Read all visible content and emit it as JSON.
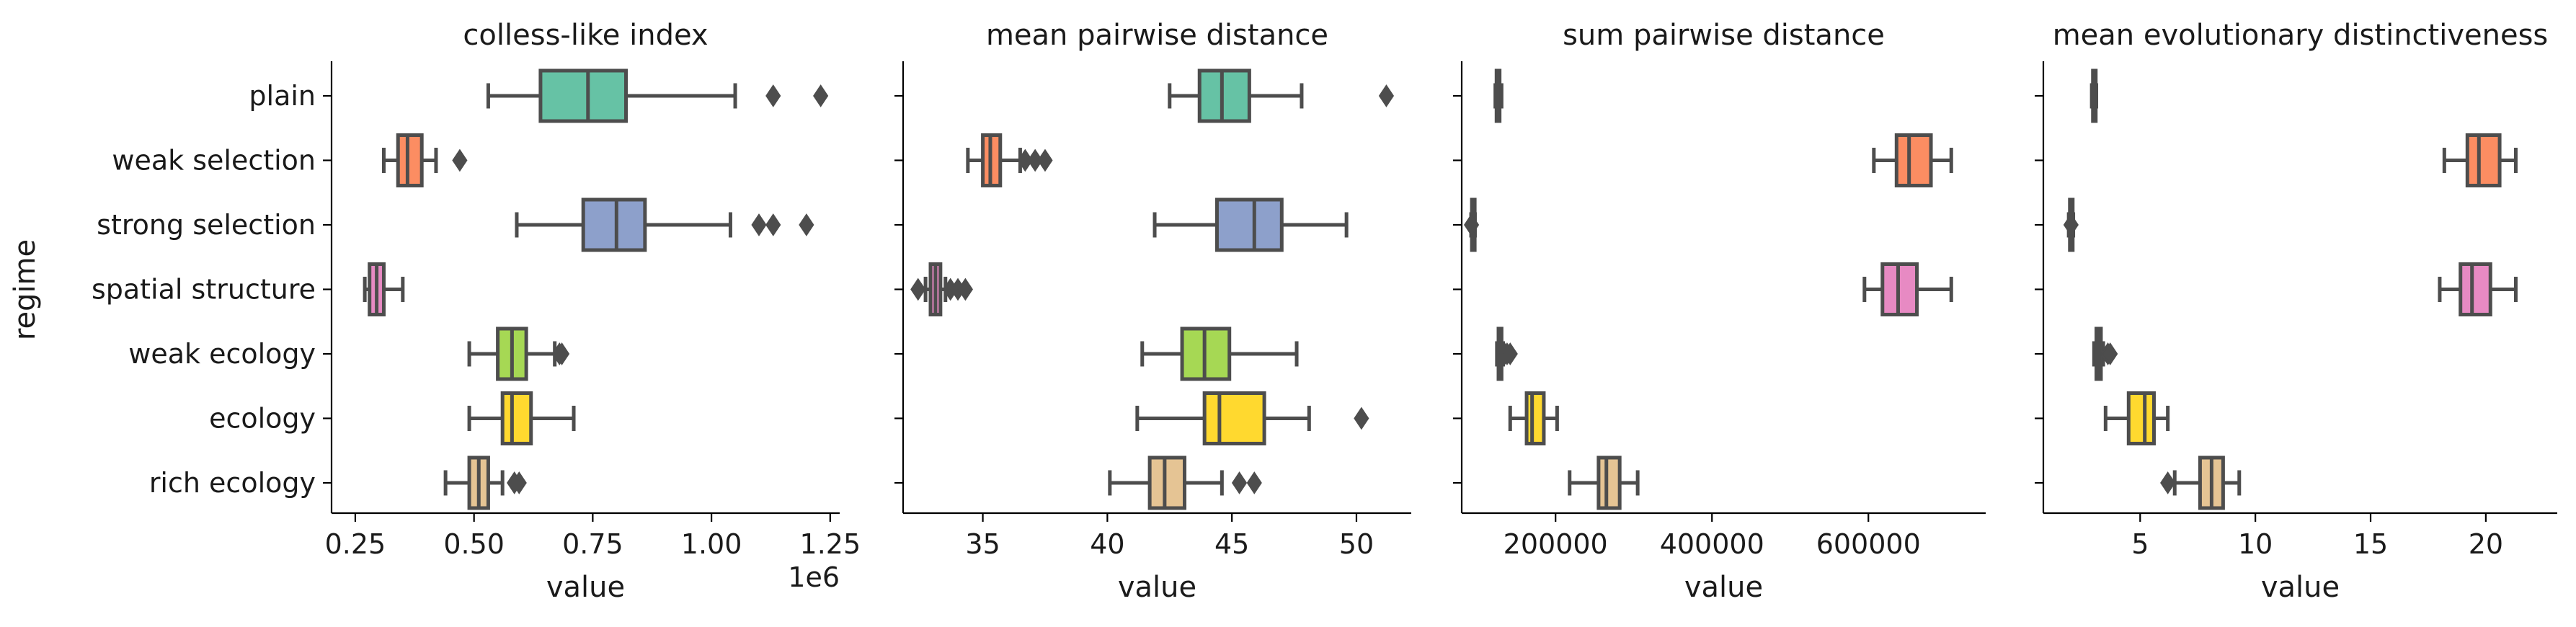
{
  "ylabel": "regime",
  "categories": [
    "plain",
    "weak selection",
    "strong selection",
    "spatial structure",
    "weak ecology",
    "ecology",
    "rich ecology"
  ],
  "colors": [
    "#66c2a5",
    "#fc8d62",
    "#8da0cb",
    "#e78ac3",
    "#a6d854",
    "#ffd92f",
    "#e5c494"
  ],
  "chart_data": [
    {
      "type": "box",
      "title": "colless-like index",
      "xlabel": "value",
      "offset_label": "1e6",
      "xlim": [
        0.2,
        1.27
      ],
      "xticks": [
        0.25,
        0.5,
        0.75,
        1.0,
        1.25
      ],
      "xtick_labels": [
        "0.25",
        "0.50",
        "0.75",
        "1.00",
        "1.25"
      ],
      "boxes": [
        {
          "category": "plain",
          "whislo": 0.53,
          "q1": 0.64,
          "med": 0.74,
          "q3": 0.82,
          "whishi": 1.05,
          "fliers": [
            1.13,
            1.23
          ]
        },
        {
          "category": "weak selection",
          "whislo": 0.31,
          "q1": 0.34,
          "med": 0.36,
          "q3": 0.39,
          "whishi": 0.42,
          "fliers": [
            0.47
          ]
        },
        {
          "category": "strong selection",
          "whislo": 0.59,
          "q1": 0.73,
          "med": 0.8,
          "q3": 0.86,
          "whishi": 1.04,
          "fliers": [
            1.1,
            1.13,
            1.2
          ]
        },
        {
          "category": "spatial structure",
          "whislo": 0.27,
          "q1": 0.28,
          "med": 0.295,
          "q3": 0.31,
          "whishi": 0.35,
          "fliers": []
        },
        {
          "category": "weak ecology",
          "whislo": 0.49,
          "q1": 0.55,
          "med": 0.58,
          "q3": 0.61,
          "whishi": 0.67,
          "fliers": [
            0.68,
            0.685
          ]
        },
        {
          "category": "ecology",
          "whislo": 0.49,
          "q1": 0.56,
          "med": 0.58,
          "q3": 0.62,
          "whishi": 0.71,
          "fliers": []
        },
        {
          "category": "rich ecology",
          "whislo": 0.44,
          "q1": 0.49,
          "med": 0.51,
          "q3": 0.53,
          "whishi": 0.56,
          "fliers": [
            0.585,
            0.595
          ]
        }
      ]
    },
    {
      "type": "box",
      "title": "mean pairwise distance",
      "xlabel": "value",
      "offset_label": "",
      "xlim": [
        31.8,
        52.2
      ],
      "xticks": [
        35,
        40,
        45,
        50
      ],
      "xtick_labels": [
        "35",
        "40",
        "45",
        "50"
      ],
      "boxes": [
        {
          "category": "plain",
          "whislo": 42.5,
          "q1": 43.7,
          "med": 44.6,
          "q3": 45.7,
          "whishi": 47.8,
          "fliers": [
            51.2
          ]
        },
        {
          "category": "weak selection",
          "whislo": 34.4,
          "q1": 35.0,
          "med": 35.3,
          "q3": 35.7,
          "whishi": 36.5,
          "fliers": [
            36.7,
            37.1,
            37.5
          ]
        },
        {
          "category": "strong selection",
          "whislo": 41.9,
          "q1": 44.4,
          "med": 45.9,
          "q3": 47.0,
          "whishi": 49.6,
          "fliers": []
        },
        {
          "category": "spatial structure",
          "whislo": 32.7,
          "q1": 32.9,
          "med": 33.1,
          "q3": 33.3,
          "whishi": 33.5,
          "fliers": [
            32.4,
            33.7,
            34.0,
            34.3
          ]
        },
        {
          "category": "weak ecology",
          "whislo": 41.4,
          "q1": 43.0,
          "med": 43.9,
          "q3": 44.9,
          "whishi": 47.6,
          "fliers": []
        },
        {
          "category": "ecology",
          "whislo": 41.2,
          "q1": 43.9,
          "med": 44.5,
          "q3": 46.3,
          "whishi": 48.1,
          "fliers": [
            50.2
          ]
        },
        {
          "category": "rich ecology",
          "whislo": 40.1,
          "q1": 41.7,
          "med": 42.3,
          "q3": 43.1,
          "whishi": 44.6,
          "fliers": [
            45.3,
            45.9
          ]
        }
      ]
    },
    {
      "type": "box",
      "title": "sum pairwise distance",
      "xlabel": "value",
      "offset_label": "",
      "xlim": [
        80000,
        750000
      ],
      "xticks": [
        200000,
        400000,
        600000
      ],
      "xtick_labels": [
        "200000",
        "400000",
        "600000"
      ],
      "boxes": [
        {
          "category": "plain",
          "whislo": 123000,
          "q1": 124500,
          "med": 126000,
          "q3": 128500,
          "whishi": 131000,
          "fliers": []
        },
        {
          "category": "weak selection",
          "whislo": 607000,
          "q1": 636000,
          "med": 652000,
          "q3": 680000,
          "whishi": 706000,
          "fliers": []
        },
        {
          "category": "strong selection",
          "whislo": 92000,
          "q1": 93000,
          "med": 94500,
          "q3": 95500,
          "whishi": 97000,
          "fliers": [
            92500
          ]
        },
        {
          "category": "spatial structure",
          "whislo": 595000,
          "q1": 618000,
          "med": 638000,
          "q3": 662000,
          "whishi": 706000,
          "fliers": []
        },
        {
          "category": "weak ecology",
          "whislo": 125000,
          "q1": 127000,
          "med": 129000,
          "q3": 131000,
          "whishi": 133000,
          "fliers": [
            135000,
            138000,
            142000
          ]
        },
        {
          "category": "ecology",
          "whislo": 142000,
          "q1": 163000,
          "med": 170000,
          "q3": 185000,
          "whishi": 202000,
          "fliers": []
        },
        {
          "category": "rich ecology",
          "whislo": 218000,
          "q1": 255000,
          "med": 265000,
          "q3": 282000,
          "whishi": 305000,
          "fliers": []
        }
      ]
    },
    {
      "type": "box",
      "title": "mean evolutionary distinctiveness",
      "xlabel": "value",
      "offset_label": "",
      "xlim": [
        0.8,
        23.1
      ],
      "xticks": [
        5,
        10,
        15,
        20
      ],
      "xtick_labels": [
        "5",
        "10",
        "15",
        "20"
      ],
      "boxes": [
        {
          "category": "plain",
          "whislo": 2.9,
          "q1": 2.95,
          "med": 3.0,
          "q3": 3.05,
          "whishi": 3.1,
          "fliers": []
        },
        {
          "category": "weak selection",
          "whislo": 18.2,
          "q1": 19.2,
          "med": 19.7,
          "q3": 20.6,
          "whishi": 21.3,
          "fliers": []
        },
        {
          "category": "strong selection",
          "whislo": 1.9,
          "q1": 1.95,
          "med": 2.0,
          "q3": 2.05,
          "whishi": 2.1,
          "fliers": [
            2.0
          ]
        },
        {
          "category": "spatial structure",
          "whislo": 18.0,
          "q1": 18.9,
          "med": 19.4,
          "q3": 20.2,
          "whishi": 21.3,
          "fliers": []
        },
        {
          "category": "weak ecology",
          "whislo": 3.0,
          "q1": 3.1,
          "med": 3.2,
          "q3": 3.3,
          "whishi": 3.4,
          "fliers": [
            3.6,
            3.7
          ]
        },
        {
          "category": "ecology",
          "whislo": 3.5,
          "q1": 4.5,
          "med": 5.2,
          "q3": 5.6,
          "whishi": 6.2,
          "fliers": []
        },
        {
          "category": "rich ecology",
          "whislo": 6.5,
          "q1": 7.6,
          "med": 8.1,
          "q3": 8.6,
          "whishi": 9.3,
          "fliers": [
            6.2
          ]
        }
      ]
    }
  ]
}
